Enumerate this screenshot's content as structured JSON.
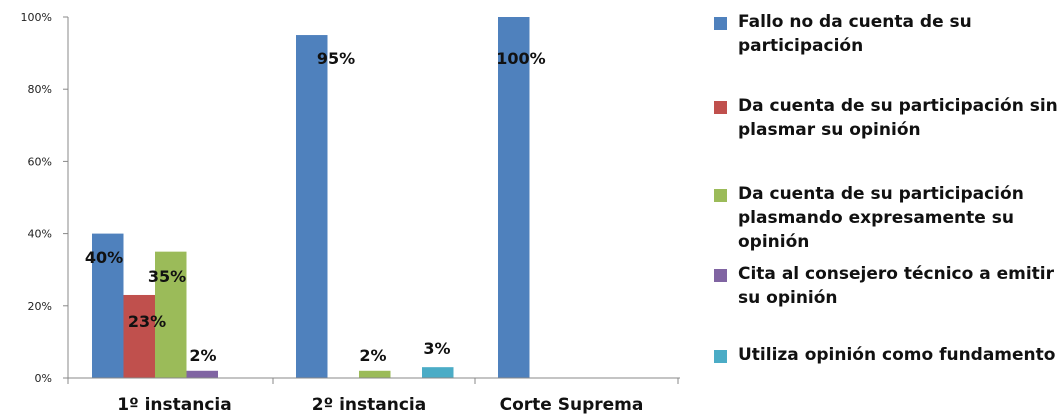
{
  "chart_data": {
    "type": "bar",
    "categories": [
      "1º instancia",
      "2º instancia",
      "Corte Suprema"
    ],
    "ylim": [
      0,
      100
    ],
    "yticks": [
      0,
      20,
      40,
      60,
      80,
      100
    ],
    "ytick_labels": [
      "0%",
      "20%",
      "40%",
      "60%",
      "80%",
      "100%"
    ],
    "legend_position": "right",
    "series": [
      {
        "name": "Fallo no da cuenta de su participación",
        "color": "#4f81bd",
        "values": [
          40,
          95,
          100
        ],
        "labels": [
          "40%",
          "95%",
          "100%"
        ]
      },
      {
        "name": "Da cuenta de su participación sin plasmar su opinión",
        "color": "#c0504d",
        "values": [
          23,
          0,
          0
        ],
        "labels": [
          "23%",
          "",
          ""
        ]
      },
      {
        "name": "Da cuenta de su participación plasmando expresamente su opinión",
        "color": "#9bbb59",
        "values": [
          35,
          2,
          0
        ],
        "labels": [
          "35%",
          "2%",
          ""
        ]
      },
      {
        "name": "Cita al consejero técnico a emitir su opinión",
        "color": "#8064a2",
        "values": [
          2,
          0,
          0
        ],
        "labels": [
          "2%",
          "",
          ""
        ]
      },
      {
        "name": "Utiliza opinión como fundamento",
        "color": "#4bacc6",
        "values": [
          0,
          3,
          0
        ],
        "labels": [
          "",
          "3%",
          ""
        ]
      }
    ]
  }
}
